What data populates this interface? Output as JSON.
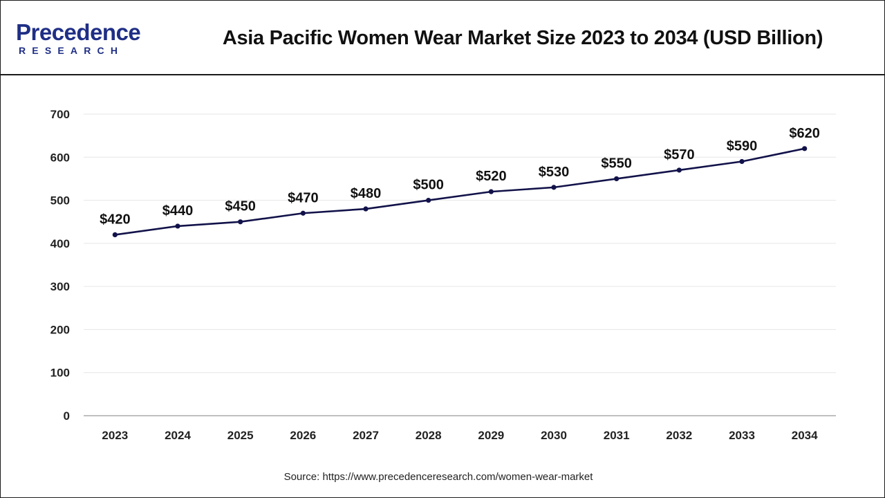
{
  "header": {
    "logo_word": "Precedence",
    "logo_sub": "RESEARCH",
    "title": "Asia Pacific Women Wear Market Size 2023 to 2034 (USD Billion)"
  },
  "chart_data": {
    "type": "line",
    "title": "Asia Pacific Women Wear Market Size 2023 to 2034 (USD Billion)",
    "xlabel": "",
    "ylabel": "",
    "categories": [
      "2023",
      "2024",
      "2025",
      "2026",
      "2027",
      "2028",
      "2029",
      "2030",
      "2031",
      "2032",
      "2033",
      "2034"
    ],
    "series": [
      {
        "values": [
          420,
          440,
          450,
          470,
          480,
          500,
          520,
          530,
          550,
          570,
          590,
          620
        ],
        "labels": [
          "$420",
          "$440",
          "$450",
          "$470",
          "$480",
          "$500",
          "$520",
          "$530",
          "$550",
          "$570",
          "$590",
          "$620"
        ]
      }
    ],
    "ylim": [
      0,
      700
    ],
    "yticks": [
      0,
      100,
      200,
      300,
      400,
      500,
      600,
      700
    ],
    "grid": true,
    "legend": "none",
    "colors": {
      "line": "#12124a",
      "grid": "#e6e6e6",
      "axis": "#999999"
    }
  },
  "footer": {
    "source": "Source: https://www.precedenceresearch.com/women-wear-market"
  }
}
